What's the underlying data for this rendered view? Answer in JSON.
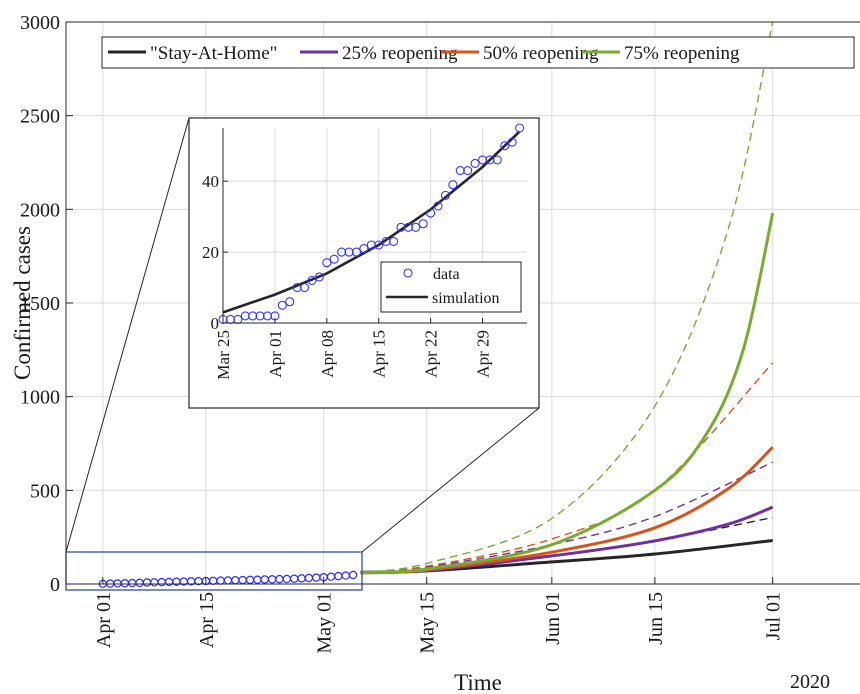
{
  "chart_data": {
    "type": "line",
    "xlabel": "Time",
    "ylabel": "Confirmed cases",
    "year_label": "2020",
    "xlim": [
      "2020-03-27",
      "2020-07-13"
    ],
    "ylim": [
      0,
      3000
    ],
    "y_ticks": [
      0,
      500,
      1000,
      1500,
      2000,
      2500,
      3000
    ],
    "x_ticks": [
      {
        "label": "Apr 01",
        "date": "2020-04-01"
      },
      {
        "label": "Apr 15",
        "date": "2020-04-15"
      },
      {
        "label": "May 01",
        "date": "2020-05-01"
      },
      {
        "label": "May 15",
        "date": "2020-05-15"
      },
      {
        "label": "Jun 01",
        "date": "2020-06-01"
      },
      {
        "label": "Jun 15",
        "date": "2020-06-15"
      },
      {
        "label": "Jul 01",
        "date": "2020-07-01"
      }
    ],
    "grid": true,
    "legend_position": "top",
    "legend": [
      {
        "name": "\"Stay-At-Home\"",
        "color": "#262626"
      },
      {
        "name": "25% reopening",
        "color": "#7030a0"
      },
      {
        "name": "50% reopening",
        "color": "#d95319"
      },
      {
        "name": "75% reopening",
        "color": "#77ac30"
      }
    ],
    "series": [
      {
        "name": "\"Stay-At-Home\"",
        "color": "#262626",
        "style": "solid",
        "points": [
          [
            "2020-05-06",
            63
          ],
          [
            "2020-05-15",
            70
          ],
          [
            "2020-06-01",
            118
          ],
          [
            "2020-06-15",
            160
          ],
          [
            "2020-07-01",
            232
          ]
        ]
      },
      {
        "name": "\"Stay-At-Home\"",
        "color": "#262626",
        "style": "dashed",
        "points": [
          [
            "2020-05-06",
            63
          ],
          [
            "2020-05-15",
            78
          ],
          [
            "2020-06-01",
            150
          ],
          [
            "2020-06-15",
            230
          ],
          [
            "2020-07-01",
            355
          ]
        ]
      },
      {
        "name": "25% reopening",
        "color": "#7030a0",
        "style": "solid",
        "points": [
          [
            "2020-05-06",
            60
          ],
          [
            "2020-05-15",
            72
          ],
          [
            "2020-06-01",
            150
          ],
          [
            "2020-06-15",
            230
          ],
          [
            "2020-06-25",
            320
          ],
          [
            "2020-07-01",
            410
          ]
        ]
      },
      {
        "name": "25% reopening",
        "color": "#7030a0",
        "style": "dashed",
        "points": [
          [
            "2020-05-06",
            62
          ],
          [
            "2020-05-15",
            90
          ],
          [
            "2020-06-01",
            210
          ],
          [
            "2020-06-15",
            360
          ],
          [
            "2020-07-01",
            650
          ]
        ]
      },
      {
        "name": "50% reopening",
        "color": "#d95319",
        "style": "solid",
        "points": [
          [
            "2020-05-06",
            60
          ],
          [
            "2020-05-15",
            75
          ],
          [
            "2020-06-01",
            170
          ],
          [
            "2020-06-15",
            300
          ],
          [
            "2020-06-25",
            510
          ],
          [
            "2020-07-01",
            730
          ]
        ]
      },
      {
        "name": "50% reopening",
        "color": "#d95319",
        "style": "dashed",
        "points": [
          [
            "2020-05-06",
            62
          ],
          [
            "2020-05-15",
            95
          ],
          [
            "2020-06-01",
            240
          ],
          [
            "2020-06-15",
            500
          ],
          [
            "2020-07-01",
            1180
          ]
        ]
      },
      {
        "name": "75% reopening",
        "color": "#77ac30",
        "style": "solid",
        "points": [
          [
            "2020-05-06",
            60
          ],
          [
            "2020-05-15",
            80
          ],
          [
            "2020-06-01",
            210
          ],
          [
            "2020-06-15",
            500
          ],
          [
            "2020-06-22",
            800
          ],
          [
            "2020-06-27",
            1250
          ],
          [
            "2020-07-01",
            1980
          ]
        ]
      },
      {
        "name": "75% reopening",
        "color": "#77ac30",
        "style": "dashed",
        "points": [
          [
            "2020-05-06",
            64
          ],
          [
            "2020-05-15",
            110
          ],
          [
            "2020-06-01",
            350
          ],
          [
            "2020-06-15",
            950
          ],
          [
            "2020-06-25",
            1900
          ],
          [
            "2020-07-01",
            3000
          ]
        ]
      }
    ],
    "data_points_main": [
      [
        "2020-04-01",
        1
      ],
      [
        "2020-04-02",
        2
      ],
      [
        "2020-04-03",
        3
      ],
      [
        "2020-04-04",
        4
      ],
      [
        "2020-04-05",
        5
      ],
      [
        "2020-04-06",
        6
      ],
      [
        "2020-04-07",
        8
      ],
      [
        "2020-04-08",
        9
      ],
      [
        "2020-04-09",
        10
      ],
      [
        "2020-04-10",
        11
      ],
      [
        "2020-04-11",
        12
      ],
      [
        "2020-04-12",
        13
      ],
      [
        "2020-04-13",
        14
      ],
      [
        "2020-04-14",
        15
      ],
      [
        "2020-04-15",
        16
      ],
      [
        "2020-04-16",
        17
      ],
      [
        "2020-04-17",
        18
      ],
      [
        "2020-04-18",
        19
      ],
      [
        "2020-04-19",
        20
      ],
      [
        "2020-04-20",
        21
      ],
      [
        "2020-04-21",
        22
      ],
      [
        "2020-04-22",
        23
      ],
      [
        "2020-04-23",
        24
      ],
      [
        "2020-04-24",
        25
      ],
      [
        "2020-04-25",
        26
      ],
      [
        "2020-04-26",
        27
      ],
      [
        "2020-04-27",
        28
      ],
      [
        "2020-04-28",
        30
      ],
      [
        "2020-04-29",
        32
      ],
      [
        "2020-04-30",
        34
      ],
      [
        "2020-05-01",
        36
      ],
      [
        "2020-05-02",
        39
      ],
      [
        "2020-05-03",
        42
      ],
      [
        "2020-05-04",
        45
      ],
      [
        "2020-05-05",
        48
      ]
    ],
    "inset": {
      "ylim": [
        0,
        55
      ],
      "y_ticks": [
        0,
        20,
        40
      ],
      "xlim": [
        "2020-03-25",
        "2020-05-05"
      ],
      "x_ticks": [
        {
          "label": "Mar 25",
          "date": "2020-03-25"
        },
        {
          "label": "Apr 01",
          "date": "2020-04-01"
        },
        {
          "label": "Apr 08",
          "date": "2020-04-08"
        },
        {
          "label": "Apr 15",
          "date": "2020-04-15"
        },
        {
          "label": "Apr 22",
          "date": "2020-04-22"
        },
        {
          "label": "Apr 29",
          "date": "2020-04-29"
        }
      ],
      "legend": [
        {
          "name": "data",
          "marker": "circle",
          "color": "#3333ff"
        },
        {
          "name": "simulation",
          "marker": "line",
          "color": "#262626"
        }
      ],
      "data": [
        [
          "2020-03-25",
          1
        ],
        [
          "2020-03-26",
          1
        ],
        [
          "2020-03-27",
          1
        ],
        [
          "2020-03-28",
          2
        ],
        [
          "2020-03-29",
          2
        ],
        [
          "2020-03-30",
          2
        ],
        [
          "2020-03-31",
          2
        ],
        [
          "2020-04-01",
          2
        ],
        [
          "2020-04-02",
          5
        ],
        [
          "2020-04-03",
          6
        ],
        [
          "2020-04-04",
          10
        ],
        [
          "2020-04-05",
          10
        ],
        [
          "2020-04-06",
          12
        ],
        [
          "2020-04-07",
          13
        ],
        [
          "2020-04-08",
          17
        ],
        [
          "2020-04-09",
          18
        ],
        [
          "2020-04-10",
          20
        ],
        [
          "2020-04-11",
          20
        ],
        [
          "2020-04-12",
          20
        ],
        [
          "2020-04-13",
          21
        ],
        [
          "2020-04-14",
          22
        ],
        [
          "2020-04-15",
          22
        ],
        [
          "2020-04-16",
          23
        ],
        [
          "2020-04-17",
          23
        ],
        [
          "2020-04-18",
          27
        ],
        [
          "2020-04-19",
          27
        ],
        [
          "2020-04-20",
          27
        ],
        [
          "2020-04-21",
          28
        ],
        [
          "2020-04-22",
          31
        ],
        [
          "2020-04-23",
          33
        ],
        [
          "2020-04-24",
          36
        ],
        [
          "2020-04-25",
          39
        ],
        [
          "2020-04-26",
          43
        ],
        [
          "2020-04-27",
          43
        ],
        [
          "2020-04-28",
          45
        ],
        [
          "2020-04-29",
          46
        ],
        [
          "2020-04-30",
          46
        ],
        [
          "2020-05-01",
          46
        ],
        [
          "2020-05-02",
          50
        ],
        [
          "2020-05-03",
          51
        ],
        [
          "2020-05-04",
          55
        ]
      ],
      "simulation": [
        [
          "2020-03-25",
          3
        ],
        [
          "2020-04-01",
          8
        ],
        [
          "2020-04-08",
          14
        ],
        [
          "2020-04-15",
          22
        ],
        [
          "2020-04-22",
          32
        ],
        [
          "2020-04-29",
          44
        ],
        [
          "2020-05-04",
          54
        ]
      ]
    }
  }
}
